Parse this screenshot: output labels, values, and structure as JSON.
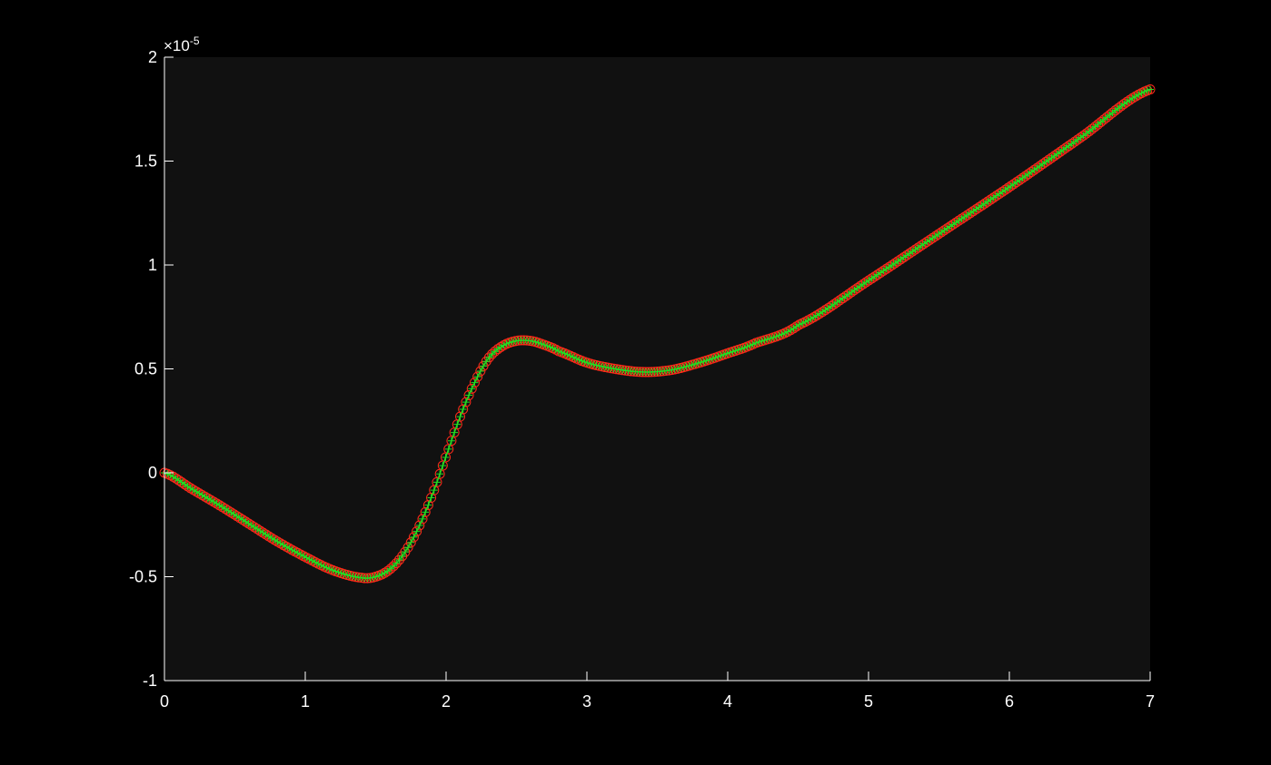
{
  "chart_data": {
    "type": "line",
    "title": "",
    "xlabel": "",
    "ylabel": "",
    "xlim": [
      0,
      7
    ],
    "ylim": [
      -1,
      2
    ],
    "y_exponent": {
      "base": "×10",
      "power": "-5"
    },
    "x_ticks": [
      {
        "value": 0,
        "label": "0"
      },
      {
        "value": 1,
        "label": "1"
      },
      {
        "value": 2,
        "label": "2"
      },
      {
        "value": 3,
        "label": "3"
      },
      {
        "value": 4,
        "label": "4"
      },
      {
        "value": 5,
        "label": "5"
      },
      {
        "value": 6,
        "label": "6"
      },
      {
        "value": 7,
        "label": "7"
      }
    ],
    "y_ticks": [
      {
        "value": -1,
        "label": "-1"
      },
      {
        "value": -0.5,
        "label": "-0.5"
      },
      {
        "value": 0,
        "label": "0"
      },
      {
        "value": 0.5,
        "label": "0.5"
      },
      {
        "value": 1,
        "label": "1"
      },
      {
        "value": 1.5,
        "label": "1.5"
      },
      {
        "value": 2,
        "label": "2"
      }
    ],
    "grid": false,
    "colors": {
      "figure_bg": "#000000",
      "axes_bg": "#111111",
      "axis": "#ffffff",
      "line": "#22dd22",
      "circle_marker": "#ff2a1a",
      "plus_marker": "#22dd22"
    },
    "series": [
      {
        "marker": "circle",
        "x": [
          0,
          0.2,
          0.4,
          0.6,
          0.8,
          1.0,
          1.2,
          1.4,
          1.5,
          1.6,
          1.7,
          1.8,
          1.9,
          2.0,
          2.1,
          2.2,
          2.3,
          2.4,
          2.5,
          2.6,
          2.7,
          2.8,
          3.0,
          3.2,
          3.4,
          3.6,
          3.8,
          4.0,
          4.2,
          4.5,
          5.0,
          5.5,
          6.0,
          6.5,
          7.0
        ],
        "y": [
          0,
          -0.08,
          -0.16,
          -0.245,
          -0.33,
          -0.405,
          -0.47,
          -0.505,
          -0.5,
          -0.465,
          -0.39,
          -0.27,
          -0.11,
          0.08,
          0.27,
          0.43,
          0.55,
          0.61,
          0.635,
          0.635,
          0.615,
          0.585,
          0.53,
          0.5,
          0.485,
          0.495,
          0.53,
          0.575,
          0.625,
          0.71,
          0.925,
          1.15,
          1.375,
          1.61,
          1.845
        ]
      },
      {
        "marker": "plus",
        "x": [
          0,
          0.2,
          0.4,
          0.6,
          0.8,
          1.0,
          1.2,
          1.4,
          1.5,
          1.6,
          1.7,
          1.8,
          1.9,
          2.0,
          2.1,
          2.2,
          2.3,
          2.4,
          2.5,
          2.6,
          2.7,
          2.8,
          3.0,
          3.2,
          3.4,
          3.6,
          3.8,
          4.0,
          4.2,
          4.5,
          5.0,
          5.5,
          6.0,
          6.5,
          7.0
        ],
        "y": [
          0,
          -0.08,
          -0.16,
          -0.245,
          -0.33,
          -0.405,
          -0.47,
          -0.505,
          -0.5,
          -0.465,
          -0.39,
          -0.27,
          -0.11,
          0.08,
          0.27,
          0.43,
          0.55,
          0.61,
          0.635,
          0.635,
          0.615,
          0.585,
          0.53,
          0.5,
          0.485,
          0.495,
          0.53,
          0.575,
          0.625,
          0.71,
          0.925,
          1.15,
          1.375,
          1.61,
          1.845
        ]
      }
    ]
  }
}
